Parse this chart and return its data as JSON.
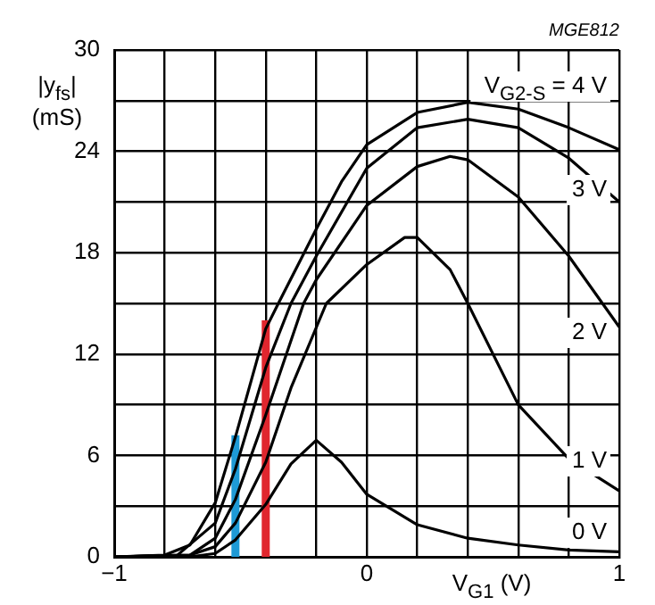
{
  "chart_data": {
    "type": "line",
    "xlabel": "V$_{G1}$ (V)",
    "ylabel": "|y$_{fs}$|\n(mS)",
    "annotations": [
      "MGE812"
    ],
    "marker": "none",
    "grid": true,
    "legend": false,
    "xlim": [
      -1,
      1
    ],
    "xticks": [
      -1,
      {
        "value": -0.8,
        "label": null
      },
      {
        "value": -0.6,
        "label": null
      },
      {
        "value": -0.4,
        "label": null
      },
      {
        "value": -0.2,
        "label": null
      },
      0,
      {
        "value": 0.2,
        "label": null
      },
      {
        "value": 0.4,
        "label": null
      },
      {
        "value": 0.6,
        "label": null
      },
      {
        "value": 0.8,
        "label": null
      },
      1
    ],
    "ylim": [
      0,
      30
    ],
    "yticks": [
      0,
      {
        "value": 3,
        "label": null
      },
      6,
      {
        "value": 9,
        "label": null
      },
      12,
      {
        "value": 15,
        "label": null
      },
      18,
      {
        "value": 21,
        "label": null
      },
      24,
      {
        "value": 27,
        "label": null
      },
      30
    ],
    "series": [
      {
        "name": "V$_{G2-S}$ = 4 V",
        "color": "#000000",
        "x": [
          -1,
          -0.8,
          -0.7,
          -0.6,
          -0.52,
          -0.4,
          -0.35,
          -0.2,
          -0.1,
          0,
          0.2,
          0.4,
          0.6,
          0.8,
          1
        ],
        "values": [
          0,
          0.1,
          0.7,
          3.2,
          7.1,
          13.5,
          15,
          19.4,
          22.2,
          24.4,
          26.3,
          26.9,
          26.5,
          25.4,
          24.1
        ]
      },
      {
        "name": "3 V",
        "color": "#000000",
        "x": [
          -1,
          -0.75,
          -0.6,
          -0.52,
          -0.4,
          -0.3,
          -0.2,
          0,
          0.2,
          0.4,
          0.6,
          0.8,
          1
        ],
        "values": [
          0,
          0.1,
          2,
          5.2,
          11.2,
          15,
          17.8,
          23,
          25.4,
          25.9,
          25.4,
          23.6,
          21
        ]
      },
      {
        "name": "2 V",
        "color": "#000000",
        "x": [
          -1,
          -0.7,
          -0.6,
          -0.52,
          -0.4,
          -0.25,
          -0.2,
          0,
          0.2,
          0.33,
          0.4,
          0.6,
          0.8,
          1
        ],
        "values": [
          0,
          0.1,
          1.1,
          3.4,
          8.4,
          15,
          16.4,
          20.8,
          23.1,
          23.7,
          23.5,
          21.3,
          17.8,
          13.6
        ]
      },
      {
        "name": "1 V",
        "color": "#000000",
        "x": [
          -1,
          -0.7,
          -0.6,
          -0.52,
          -0.4,
          -0.3,
          -0.16,
          0,
          0.15,
          0.2,
          0.33,
          0.4,
          0.6,
          0.8,
          1
        ],
        "values": [
          0,
          0.1,
          0.6,
          2,
          5.6,
          10,
          15,
          17.3,
          18.9,
          18.9,
          17,
          15,
          9,
          5.8,
          3.9
        ]
      },
      {
        "name": "0 V",
        "color": "#000000",
        "x": [
          -1,
          -0.7,
          -0.6,
          -0.52,
          -0.4,
          -0.3,
          -0.2,
          -0.1,
          0,
          0.2,
          0.4,
          0.6,
          0.8,
          1
        ],
        "values": [
          0,
          0,
          0.2,
          1,
          3.1,
          5.5,
          6.9,
          5.6,
          3.7,
          1.9,
          1.1,
          0.7,
          0.4,
          0.3
        ]
      },
      {
        "color": "#e0262e",
        "x": [
          -0.4,
          -0.4
        ],
        "values": [
          0,
          14
        ]
      },
      {
        "color": "#1e9ad6",
        "x": [
          -0.52,
          -0.52
        ],
        "values": [
          0,
          7.2
        ]
      }
    ]
  }
}
